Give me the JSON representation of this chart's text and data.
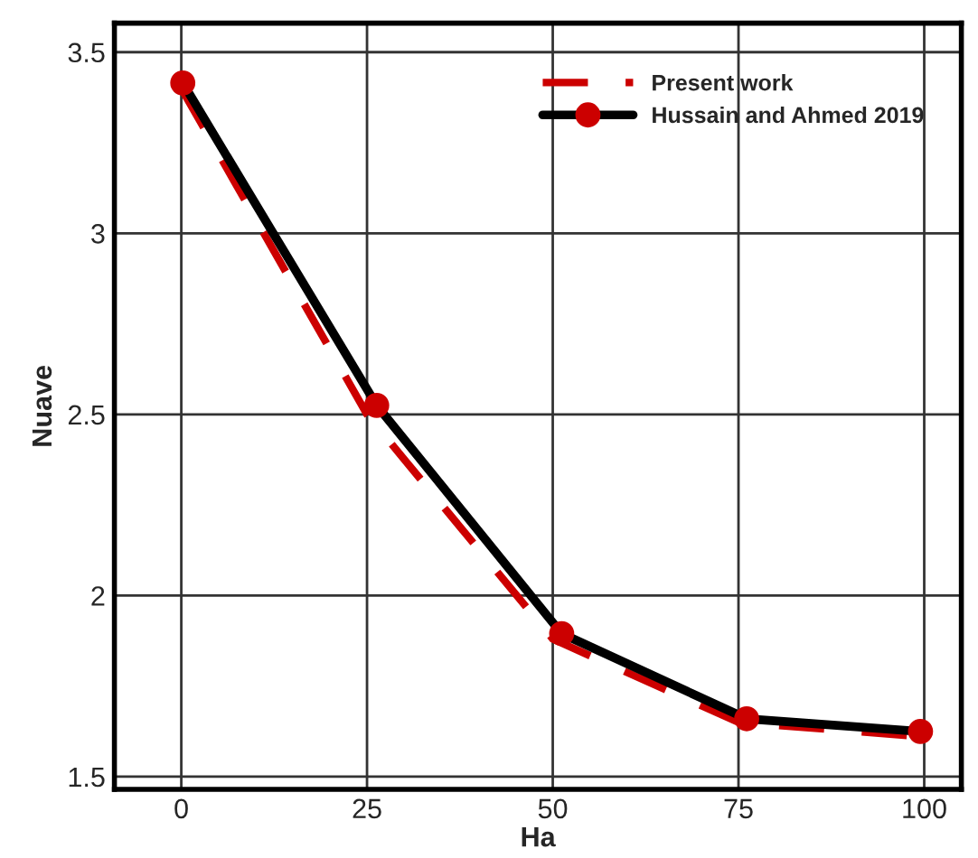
{
  "chart_data": {
    "type": "line",
    "xlabel": "Ha",
    "ylabel": "Nuave",
    "series": [
      {
        "name": "Present work",
        "color": "#cc0000",
        "line_style": "dashed",
        "marker": "none",
        "x": [
          0,
          25,
          50,
          75,
          100
        ],
        "values": [
          3.4,
          2.5,
          1.88,
          1.65,
          1.61
        ]
      },
      {
        "name": "Hussain and Ahmed 2019",
        "color": "#000000",
        "line_style": "solid",
        "marker": "circle",
        "x": [
          0.2,
          26.3,
          51.2,
          76.1,
          99.5
        ],
        "values": [
          3.415,
          2.525,
          1.895,
          1.66,
          1.625
        ]
      }
    ],
    "xlim": [
      -9,
      105
    ],
    "xticks": [
      0,
      25,
      50,
      75,
      100
    ],
    "ylim": [
      1.465,
      3.58
    ],
    "yticks": [
      1.5,
      2,
      2.5,
      3,
      3.5
    ],
    "grid": true,
    "legend": "top right"
  }
}
